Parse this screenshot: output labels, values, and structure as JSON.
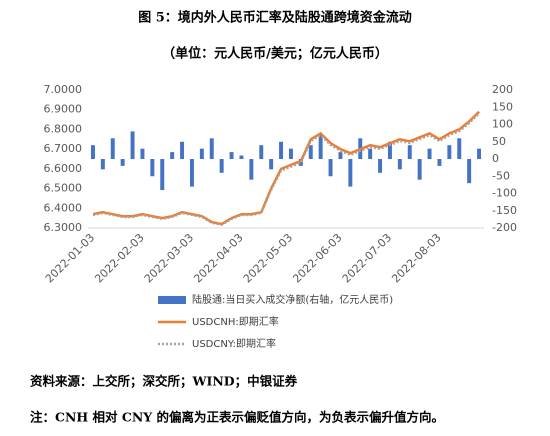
{
  "chart_data": {
    "type": "bar-line",
    "title": "图 5：境内外人民币汇率及陆股通跨境资金流动",
    "subtitle": "（单位：元人民币/美元；亿元人民币）",
    "source": "资料来源：上交所；深交所；WIND；中银证券",
    "note": "注：CNH 相对 CNY 的偏离为正表示偏贬值方向，为负表示偏升值方向。",
    "categories": [
      "2022-01-03",
      null,
      null,
      null,
      null,
      "2022-02-03",
      null,
      null,
      null,
      null,
      "2022-03-03",
      null,
      null,
      null,
      null,
      "2022-04-03",
      null,
      null,
      null,
      null,
      "2022-05-03",
      null,
      null,
      null,
      null,
      "2022-06-03",
      null,
      null,
      null,
      null,
      "2022-07-03",
      null,
      null,
      null,
      null,
      "2022-08-03",
      null,
      null,
      null,
      null
    ],
    "ylim": [
      6.3,
      7.0
    ],
    "yticks": [
      {
        "value": 6.3,
        "label": "6.3000"
      },
      {
        "value": 6.4,
        "label": "6.4000"
      },
      {
        "value": 6.5,
        "label": "6.5000"
      },
      {
        "value": 6.6,
        "label": "6.6000"
      },
      {
        "value": 6.7,
        "label": "6.7000"
      },
      {
        "value": 6.8,
        "label": "6.8000"
      },
      {
        "value": 6.9,
        "label": "6.9000"
      },
      {
        "value": 7.0,
        "label": "7.0000"
      }
    ],
    "y2lim": [
      -200,
      200
    ],
    "y2ticks": [
      -200,
      -150,
      -100,
      -50,
      0,
      50,
      100,
      150,
      200
    ],
    "series": [
      {
        "name": "陆股通:当日买入成交净额(右轴，亿元人民币)",
        "type": "bar",
        "axis": "y2",
        "color": "#4472c4",
        "values": [
          40,
          -30,
          60,
          -20,
          80,
          30,
          -50,
          -90,
          20,
          50,
          -80,
          30,
          60,
          -40,
          20,
          10,
          -60,
          40,
          -30,
          50,
          30,
          -20,
          40,
          70,
          -50,
          20,
          -80,
          60,
          30,
          -40,
          50,
          -30,
          40,
          -60,
          30,
          -20,
          40,
          60,
          -70,
          30
        ]
      },
      {
        "name": "USDCNH:即期汇率",
        "type": "line",
        "color": "#ed7d31",
        "values": [
          6.37,
          6.38,
          6.37,
          6.36,
          6.36,
          6.37,
          6.36,
          6.35,
          6.36,
          6.38,
          6.37,
          6.36,
          6.33,
          6.32,
          6.35,
          6.37,
          6.37,
          6.38,
          6.5,
          6.6,
          6.62,
          6.64,
          6.75,
          6.78,
          6.73,
          6.7,
          6.68,
          6.7,
          6.72,
          6.71,
          6.73,
          6.75,
          6.74,
          6.76,
          6.78,
          6.75,
          6.78,
          6.8,
          6.84,
          6.89
        ]
      },
      {
        "name": "USDCNY:即期汇率",
        "type": "line",
        "dashed": true,
        "color": "#a5a5a5",
        "values": [
          6.365,
          6.375,
          6.365,
          6.355,
          6.355,
          6.365,
          6.355,
          6.345,
          6.355,
          6.375,
          6.365,
          6.355,
          6.325,
          6.315,
          6.345,
          6.365,
          6.365,
          6.375,
          6.49,
          6.59,
          6.61,
          6.63,
          6.74,
          6.77,
          6.72,
          6.69,
          6.67,
          6.69,
          6.71,
          6.7,
          6.72,
          6.74,
          6.73,
          6.75,
          6.77,
          6.74,
          6.77,
          6.79,
          6.83,
          6.88
        ]
      }
    ]
  }
}
